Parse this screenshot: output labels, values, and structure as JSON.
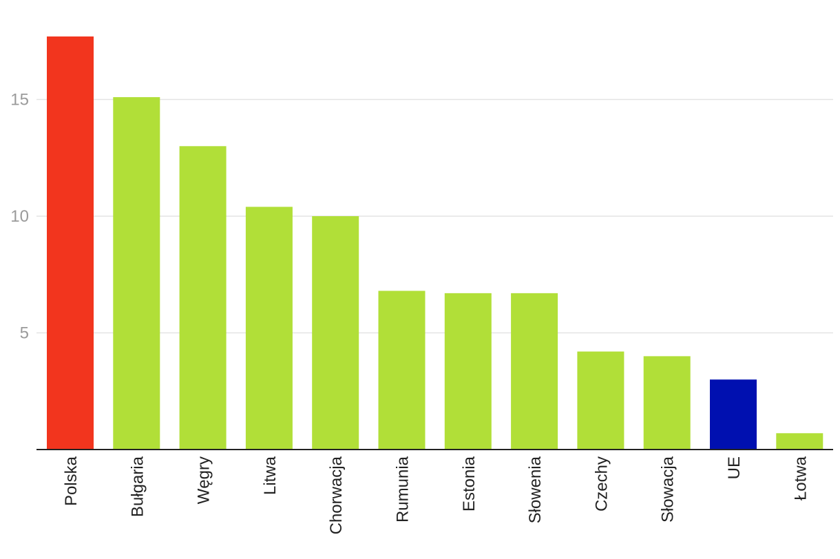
{
  "chart_data": {
    "type": "bar",
    "title": "",
    "xlabel": "",
    "ylabel": "",
    "categories": [
      "Polska",
      "Bułgaria",
      "Węgry",
      "Litwa",
      "Chorwacja",
      "Rumunia",
      "Estonia",
      "Słowenia",
      "Czechy",
      "Słowacja",
      "UE",
      "Łotwa"
    ],
    "values": [
      17.7,
      15.1,
      13.0,
      10.4,
      10.0,
      6.8,
      6.7,
      6.7,
      4.2,
      4.0,
      3.0,
      0.7
    ],
    "colors": [
      "#f2351e",
      "#b1df38",
      "#b1df38",
      "#b1df38",
      "#b1df38",
      "#b1df38",
      "#b1df38",
      "#b1df38",
      "#b1df38",
      "#b1df38",
      "#0010b0",
      "#b1df38"
    ],
    "ylim": [
      0,
      19
    ],
    "yticks": [
      5,
      10,
      15
    ],
    "grid": true,
    "legend": "none"
  }
}
